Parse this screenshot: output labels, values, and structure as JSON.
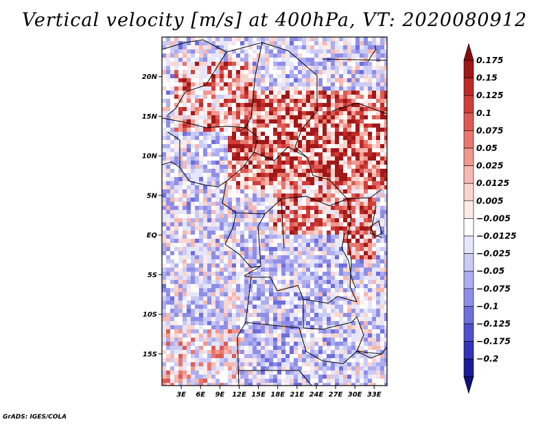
{
  "title": "Vertical velocity [m/s] at 400hPa, VT: 2020080912",
  "credit": "GrADS: IGES/COLA",
  "map": {
    "region": "Central Africa",
    "field": "vertical velocity",
    "level": "400hPa",
    "lon_range": [
      0,
      35
    ],
    "lat_range": [
      -19,
      25
    ],
    "lat_ticks": [
      {
        "value": 20,
        "label": "20N"
      },
      {
        "value": 15,
        "label": "15N"
      },
      {
        "value": 10,
        "label": "10N"
      },
      {
        "value": 5,
        "label": "5N"
      },
      {
        "value": 0,
        "label": "EQ"
      },
      {
        "value": -5,
        "label": "5S"
      },
      {
        "value": -10,
        "label": "10S"
      },
      {
        "value": -15,
        "label": "15S"
      }
    ],
    "lon_ticks": [
      {
        "value": 3,
        "label": "3E"
      },
      {
        "value": 6,
        "label": "6E"
      },
      {
        "value": 9,
        "label": "9E"
      },
      {
        "value": 12,
        "label": "12E"
      },
      {
        "value": 15,
        "label": "15E"
      },
      {
        "value": 18,
        "label": "18E"
      },
      {
        "value": 21,
        "label": "21E"
      },
      {
        "value": 24,
        "label": "24E"
      },
      {
        "value": 27,
        "label": "27E"
      },
      {
        "value": 30,
        "label": "30E"
      },
      {
        "value": 33,
        "label": "33E"
      }
    ]
  },
  "colorbar": {
    "levels": [
      {
        "label": "0.175",
        "color": "#a01818"
      },
      {
        "label": "0.15",
        "color": "#be2a28"
      },
      {
        "label": "0.125",
        "color": "#d03e3a"
      },
      {
        "label": "0.1",
        "color": "#de5a54"
      },
      {
        "label": "0.075",
        "color": "#e8786e"
      },
      {
        "label": "0.05",
        "color": "#f09890"
      },
      {
        "label": "0.025",
        "color": "#f6b8b0"
      },
      {
        "label": "0.0125",
        "color": "#fad4ce"
      },
      {
        "label": "0.005",
        "color": "#fdebe8"
      },
      {
        "label": "−0.005",
        "color": "#ffffff"
      },
      {
        "label": "−0.0125",
        "color": "#e6e6fb"
      },
      {
        "label": "−0.025",
        "color": "#cbcbf6"
      },
      {
        "label": "−0.05",
        "color": "#adadf0"
      },
      {
        "label": "−0.075",
        "color": "#8e8ee8"
      },
      {
        "label": "−0.1",
        "color": "#6e6edc"
      },
      {
        "label": "−0.125",
        "color": "#5050cc"
      },
      {
        "label": "−0.175",
        "color": "#3434b6"
      },
      {
        "label": "−0.2",
        "color": "#1c1c96"
      }
    ],
    "top_color": "#8c0c0c",
    "bottom_color": "#101080"
  }
}
